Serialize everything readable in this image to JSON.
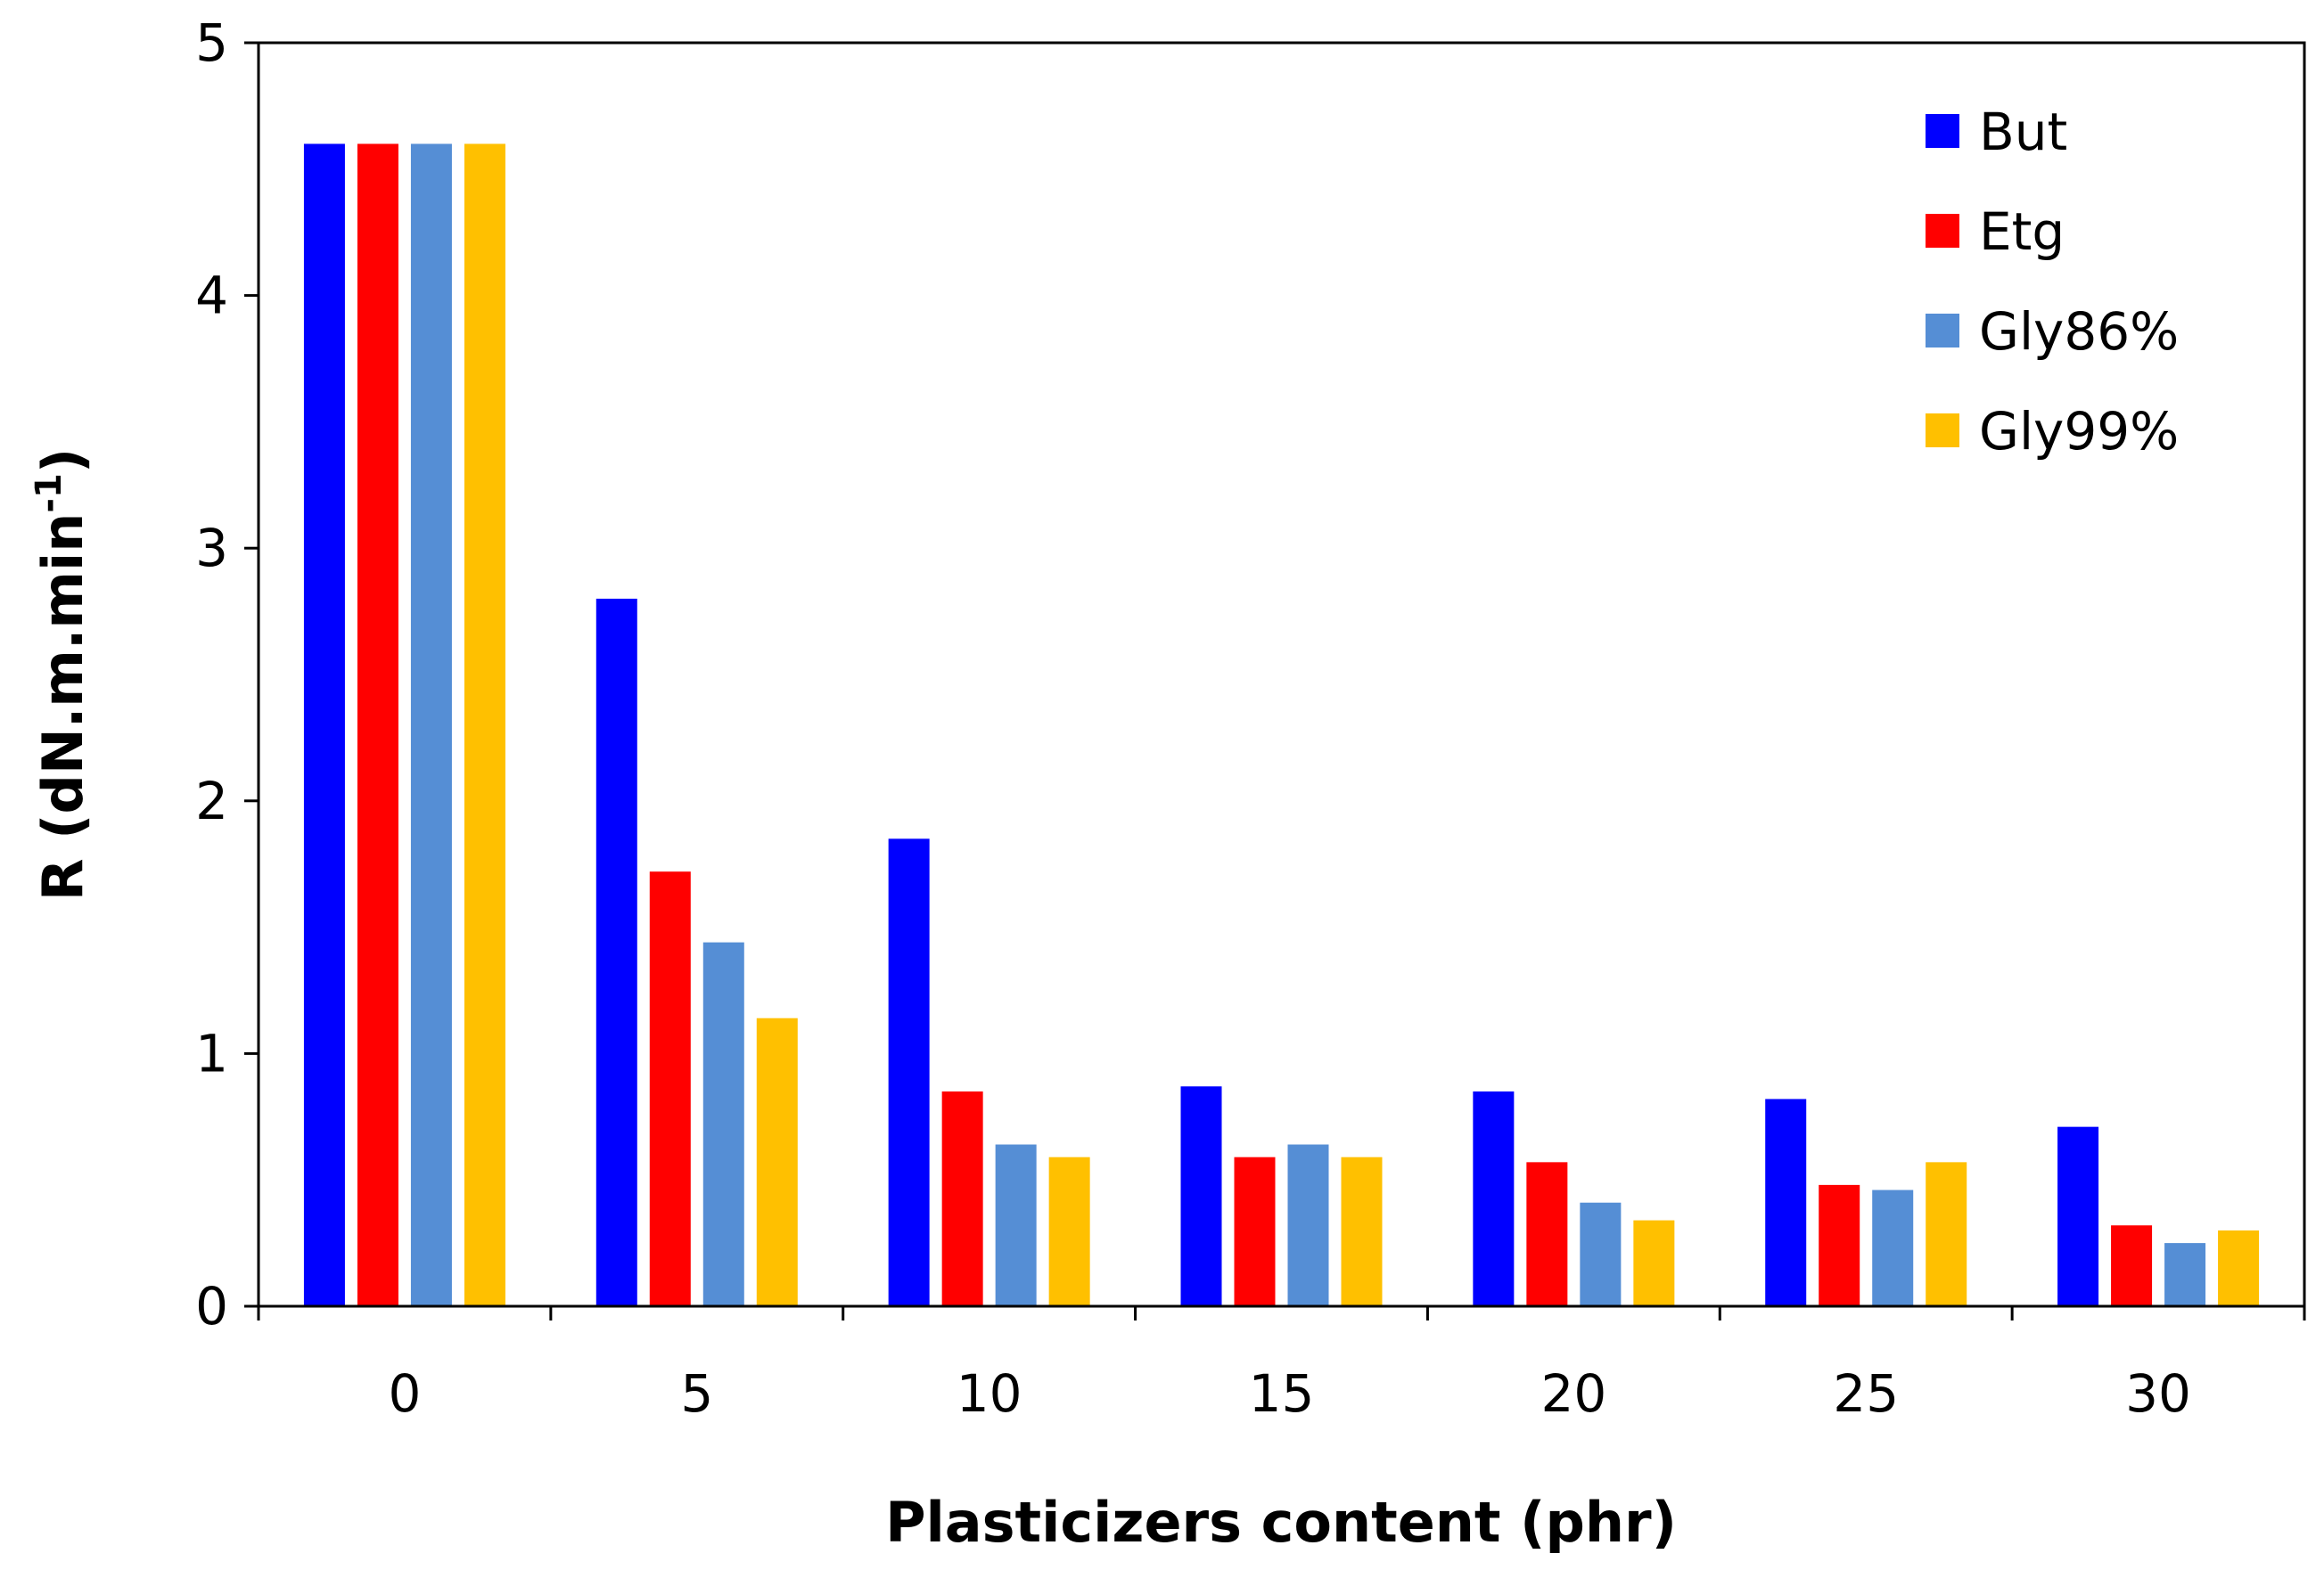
{
  "chart_data": {
    "type": "bar",
    "title": "",
    "xlabel": "Plasticizers content (phr)",
    "ylabel_main": "R (dN.m.min",
    "ylabel_sup": "-1",
    "ylabel_close": ")",
    "ylim": [
      0,
      5
    ],
    "yticks": [
      "0",
      "1",
      "2",
      "3",
      "4",
      "5"
    ],
    "categories": [
      "0",
      "5",
      "10",
      "15",
      "20",
      "25",
      "30"
    ],
    "legend_position": "top-right",
    "grid": false,
    "series": [
      {
        "name": "But",
        "color": "#0000FF",
        "values": [
          4.6,
          2.8,
          1.85,
          0.87,
          0.85,
          0.82,
          0.71
        ]
      },
      {
        "name": "Etg",
        "color": "#FF0000",
        "values": [
          4.6,
          1.72,
          0.85,
          0.59,
          0.57,
          0.48,
          0.32
        ]
      },
      {
        "name": "Gly86%",
        "color": "#558ED5",
        "values": [
          4.6,
          1.44,
          0.64,
          0.64,
          0.41,
          0.46,
          0.25
        ]
      },
      {
        "name": "Gly99%",
        "color": "#FFC000",
        "values": [
          4.6,
          1.14,
          0.59,
          0.59,
          0.34,
          0.57,
          0.3
        ]
      }
    ]
  }
}
